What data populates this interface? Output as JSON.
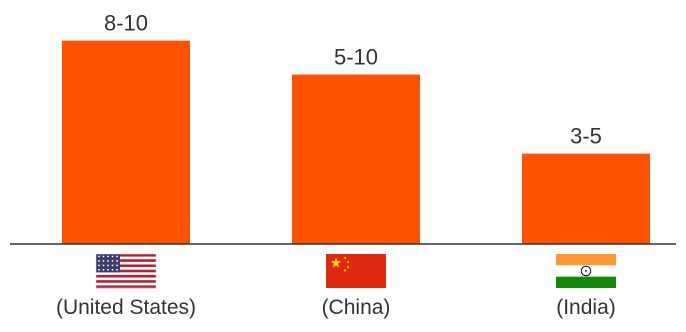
{
  "chart_data": {
    "type": "bar",
    "title": "",
    "xlabel": "",
    "ylabel": "",
    "categories": [
      "(United States)",
      "(China)",
      "(India)"
    ],
    "series": [
      {
        "values": [
          9,
          7.5,
          4
        ],
        "ranges": [
          [
            8,
            10
          ],
          [
            5,
            10
          ],
          [
            3,
            5
          ]
        ]
      }
    ],
    "data_labels": [
      "8-10",
      "5-10",
      "3-5"
    ],
    "flags": [
      "us-flag-icon",
      "china-flag-icon",
      "india-flag-icon"
    ],
    "ylim": [
      0,
      10.8
    ],
    "grid": false,
    "legend": "none",
    "colors": {
      "bar": "#FF5200",
      "axis": "#333333",
      "label": "#333333"
    }
  }
}
